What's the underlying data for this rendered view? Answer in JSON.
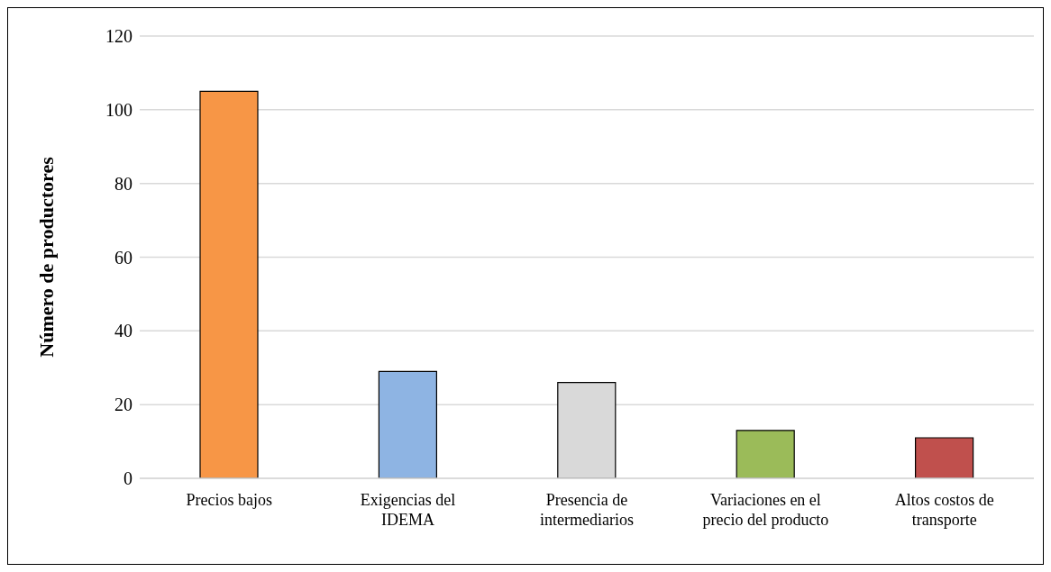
{
  "chart_data": {
    "type": "bar",
    "ylabel": "Número de productores",
    "categories": [
      "Precios bajos",
      "Exigencias del IDEMA",
      "Presencia de intermediarios",
      "Variaciones en el precio del producto",
      "Altos costos de transporte"
    ],
    "values": [
      105,
      29,
      26,
      13,
      11
    ],
    "colors": [
      "#f79646",
      "#8eb4e3",
      "#d9d9d9",
      "#9bbb59",
      "#c0504d"
    ],
    "ylim": [
      0,
      120
    ],
    "yticks": [
      0,
      20,
      40,
      60,
      80,
      100,
      120
    ],
    "grid": "y"
  }
}
